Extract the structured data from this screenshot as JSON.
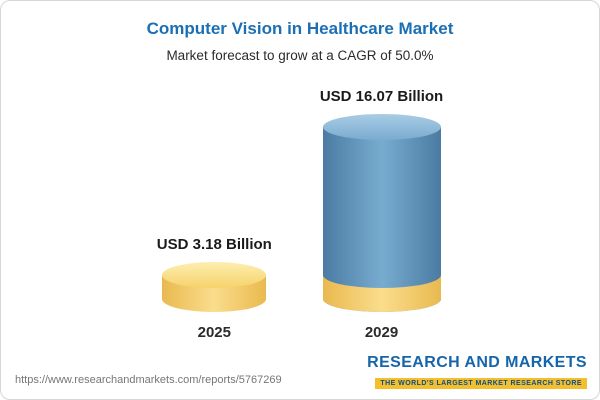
{
  "header": {
    "title": "Computer Vision in Healthcare Market",
    "subtitle": "Market forecast to grow at a CAGR of 50.0%"
  },
  "chart_data": {
    "type": "bar",
    "title": "Computer Vision in Healthcare Market",
    "subtitle": "Market forecast to grow at a CAGR of 50.0%",
    "categories": [
      "2025",
      "2029"
    ],
    "values": [
      3.18,
      16.07
    ],
    "value_labels": [
      "USD 3.18 Billion",
      "USD 16.07 Billion"
    ],
    "unit": "USD Billion",
    "cagr": "50.0%",
    "ylim": [
      0,
      16.07
    ],
    "bar_colors": [
      "#f0c75e",
      "#5e93bd"
    ],
    "legend": "none",
    "grid": "off"
  },
  "footer": {
    "url": "https://www.researchandmarkets.com/reports/5767269",
    "logo_text": "RESEARCH AND MARKETS",
    "logo_tagline": "THE WORLD'S LARGEST MARKET RESEARCH STORE"
  },
  "colors": {
    "title_blue": "#1b6fb5",
    "logo_blue": "#1565ab",
    "accent_yellow": "#f0c75e",
    "accent_blue": "#5e93bd"
  }
}
